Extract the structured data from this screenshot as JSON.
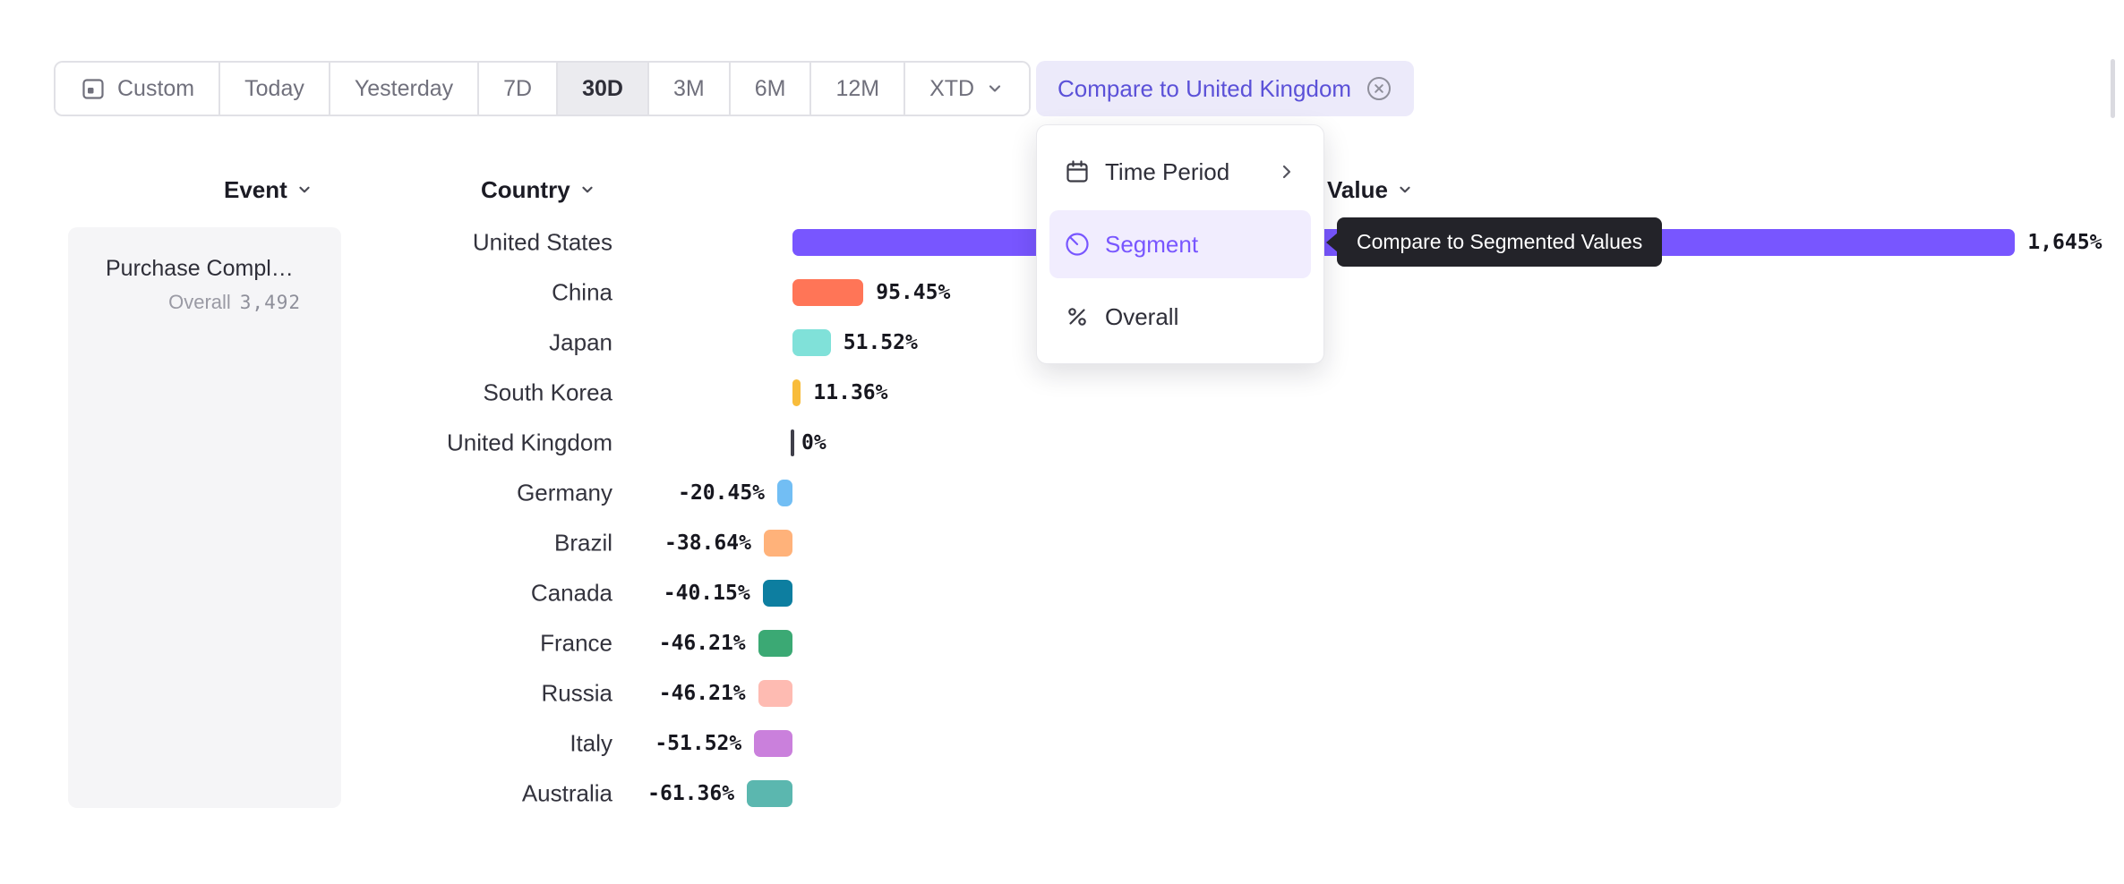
{
  "toolbar": {
    "custom_label": "Custom",
    "ranges": [
      "Today",
      "Yesterday",
      "7D",
      "30D",
      "3M",
      "6M",
      "12M",
      "XTD"
    ],
    "active_range": "30D"
  },
  "compare": {
    "label": "Compare to United Kingdom"
  },
  "menu": {
    "items": [
      {
        "label": "Time Period",
        "icon": "calendar-icon",
        "has_submenu": true
      },
      {
        "label": "Segment",
        "icon": "segment-icon",
        "active": true
      },
      {
        "label": "Overall",
        "icon": "percent-icon"
      }
    ]
  },
  "tooltip": {
    "text": "Compare to Segmented Values"
  },
  "columns": {
    "event": "Event",
    "country": "Country",
    "value": "Value"
  },
  "event": {
    "name": "Purchase Compl…",
    "overall_label": "Overall",
    "overall_value": "3,492"
  },
  "colors": {
    "accent": "#7856FF",
    "compare_chip_bg": "#ECEAFA",
    "compare_chip_text": "#5B51D8",
    "menu_active_bg": "#F1EDFE",
    "tooltip_bg": "#232329",
    "panel_bg": "#F5F5F7",
    "active_range_bg": "#EBEBEF"
  },
  "chart_data": {
    "type": "bar",
    "orientation": "horizontal",
    "title": "",
    "xlabel": "Value",
    "ylabel": "Country",
    "categories": [
      "United States",
      "China",
      "Japan",
      "South Korea",
      "United Kingdom",
      "Germany",
      "Brazil",
      "Canada",
      "France",
      "Russia",
      "Italy",
      "Australia"
    ],
    "values": [
      1645,
      95.45,
      51.52,
      11.36,
      0,
      -20.45,
      -38.64,
      -40.15,
      -46.21,
      -46.21,
      -51.52,
      -61.36
    ],
    "value_labels": [
      "1,645%",
      "95.45%",
      "51.52%",
      "11.36%",
      "0%",
      "-20.45%",
      "-38.64%",
      "-40.15%",
      "-46.21%",
      "-46.21%",
      "-51.52%",
      "-61.36%"
    ],
    "bar_colors": [
      "#7856FF",
      "#FF7557",
      "#80E1D9",
      "#F8BC3B",
      "#3F3F4A",
      "#72BEF4",
      "#FFB27A",
      "#0D7EA0",
      "#3BA974",
      "#FEBBB2",
      "#CA80DC",
      "#5BB7AF"
    ],
    "unit": "%",
    "baseline": 0,
    "grid": false,
    "legend": false
  }
}
